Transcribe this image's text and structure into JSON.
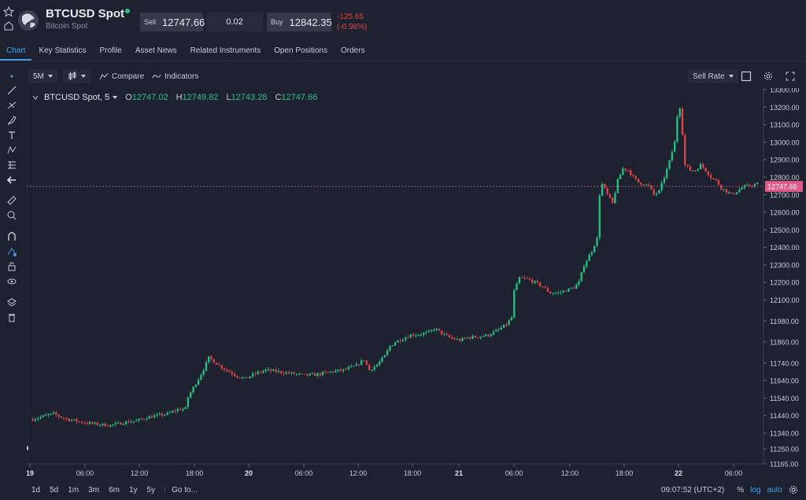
{
  "header": {
    "symbol": "BTCUSD Spot",
    "subtitle": "Bitcoin Spot",
    "sell_label": "Sell",
    "sell_price": "12747.66",
    "quantity": "0.02",
    "buy_label": "Buy",
    "buy_price": "12842.35",
    "change": "-125.65",
    "change_pct": "(-0.98%)",
    "colors": {
      "negative": "#e04444",
      "online": "#2ec27e"
    }
  },
  "tabs": [
    {
      "label": "Chart",
      "active": true
    },
    {
      "label": "Key Statistics"
    },
    {
      "label": "Profile"
    },
    {
      "label": "Asset News"
    },
    {
      "label": "Related Instruments"
    },
    {
      "label": "Open Positions"
    },
    {
      "label": "Orders"
    }
  ],
  "toolbar": {
    "interval": "5M",
    "compare_label": "Compare",
    "indicators_label": "Indicators",
    "rate_type": "Sell Rate"
  },
  "legend": {
    "name": "BTCUSD Spot, 5",
    "o_label": "O",
    "o": "12747.02",
    "h_label": "H",
    "h": "12749.82",
    "l_label": "L",
    "l": "12743.28",
    "c_label": "C",
    "c": "12747.66"
  },
  "bottom": {
    "ranges": [
      "1d",
      "5d",
      "1m",
      "3m",
      "6m",
      "1y",
      "5y"
    ],
    "goto_label": "Go to...",
    "clock": "09:07:52 (UTC+2)",
    "pct_label": "%",
    "log_label": "log",
    "auto_label": "auto"
  },
  "chart_data": {
    "type": "candlestick",
    "y_ticks": [
      13300,
      13200,
      13100,
      13000,
      12900,
      12800,
      12700,
      12600,
      12500,
      12400,
      12300,
      12200,
      12100,
      11980,
      11860,
      11740,
      11640,
      11540,
      11440,
      11340,
      11250,
      11165
    ],
    "y_tick_labels": [
      "13300.00",
      "13200.00",
      "13100.00",
      "13000.00",
      "12900.00",
      "12800.00",
      "12700.00",
      "12600.00",
      "12500.00",
      "12400.00",
      "12300.00",
      "12200.00",
      "12100.00",
      "11980.00",
      "11860.00",
      "11740.00",
      "11640.00",
      "11540.00",
      "11440.00",
      "11340.00",
      "11250.00",
      "11165.00"
    ],
    "x_ticks": [
      "19",
      "06:00",
      "12:00",
      "18:00",
      "20",
      "06:00",
      "12:00",
      "18:00",
      "21",
      "06:00",
      "12:00",
      "18:00",
      "22",
      "06:00"
    ],
    "current_price": 12747.66,
    "current_price_label": "12747.66",
    "path": [
      [
        0,
        11420
      ],
      [
        5,
        11440
      ],
      [
        8,
        11450
      ],
      [
        12,
        11425
      ],
      [
        18,
        11405
      ],
      [
        25,
        11390
      ],
      [
        30,
        11385
      ],
      [
        35,
        11400
      ],
      [
        40,
        11410
      ],
      [
        44,
        11430
      ],
      [
        48,
        11440
      ],
      [
        52,
        11450
      ],
      [
        56,
        11475
      ],
      [
        59,
        11480
      ],
      [
        60,
        11545
      ],
      [
        62,
        11600
      ],
      [
        64,
        11650
      ],
      [
        66,
        11705
      ],
      [
        68,
        11770
      ],
      [
        70,
        11750
      ],
      [
        73,
        11715
      ],
      [
        76,
        11690
      ],
      [
        79,
        11665
      ],
      [
        82,
        11650
      ],
      [
        86,
        11680
      ],
      [
        90,
        11700
      ],
      [
        95,
        11690
      ],
      [
        100,
        11680
      ],
      [
        105,
        11670
      ],
      [
        110,
        11675
      ],
      [
        115,
        11690
      ],
      [
        120,
        11700
      ],
      [
        125,
        11725
      ],
      [
        128,
        11760
      ],
      [
        130,
        11700
      ],
      [
        133,
        11730
      ],
      [
        136,
        11780
      ],
      [
        138,
        11835
      ],
      [
        140,
        11860
      ],
      [
        143,
        11880
      ],
      [
        146,
        11900
      ],
      [
        150,
        11905
      ],
      [
        153,
        11915
      ],
      [
        155,
        11935
      ],
      [
        156,
        11930
      ],
      [
        159,
        11900
      ],
      [
        162,
        11880
      ],
      [
        165,
        11870
      ],
      [
        168,
        11885
      ],
      [
        172,
        11890
      ],
      [
        176,
        11900
      ],
      [
        180,
        11930
      ],
      [
        183,
        11960
      ],
      [
        185,
        12000
      ],
      [
        186,
        12150
      ],
      [
        188,
        12225
      ],
      [
        191,
        12220
      ],
      [
        194,
        12200
      ],
      [
        197,
        12175
      ],
      [
        200,
        12140
      ],
      [
        203,
        12140
      ],
      [
        206,
        12155
      ],
      [
        209,
        12170
      ],
      [
        211,
        12200
      ],
      [
        213,
        12300
      ],
      [
        216,
        12380
      ],
      [
        218,
        12450
      ],
      [
        219,
        12700
      ],
      [
        220,
        12760
      ],
      [
        222,
        12700
      ],
      [
        224,
        12650
      ],
      [
        226,
        12780
      ],
      [
        228,
        12850
      ],
      [
        230,
        12840
      ],
      [
        232,
        12800
      ],
      [
        234,
        12770
      ],
      [
        236,
        12760
      ],
      [
        238,
        12750
      ],
      [
        240,
        12700
      ],
      [
        242,
        12720
      ],
      [
        244,
        12800
      ],
      [
        246,
        12890
      ],
      [
        248,
        13000
      ],
      [
        249,
        13150
      ],
      [
        250,
        13200
      ],
      [
        251,
        13050
      ],
      [
        252,
        12870
      ],
      [
        254,
        12840
      ],
      [
        256,
        12840
      ],
      [
        258,
        12870
      ],
      [
        260,
        12840
      ],
      [
        262,
        12800
      ],
      [
        264,
        12780
      ],
      [
        266,
        12740
      ],
      [
        268,
        12720
      ],
      [
        270,
        12700
      ],
      [
        272,
        12720
      ],
      [
        274,
        12740
      ],
      [
        276,
        12750
      ],
      [
        280,
        12760
      ]
    ],
    "seed": 7
  }
}
